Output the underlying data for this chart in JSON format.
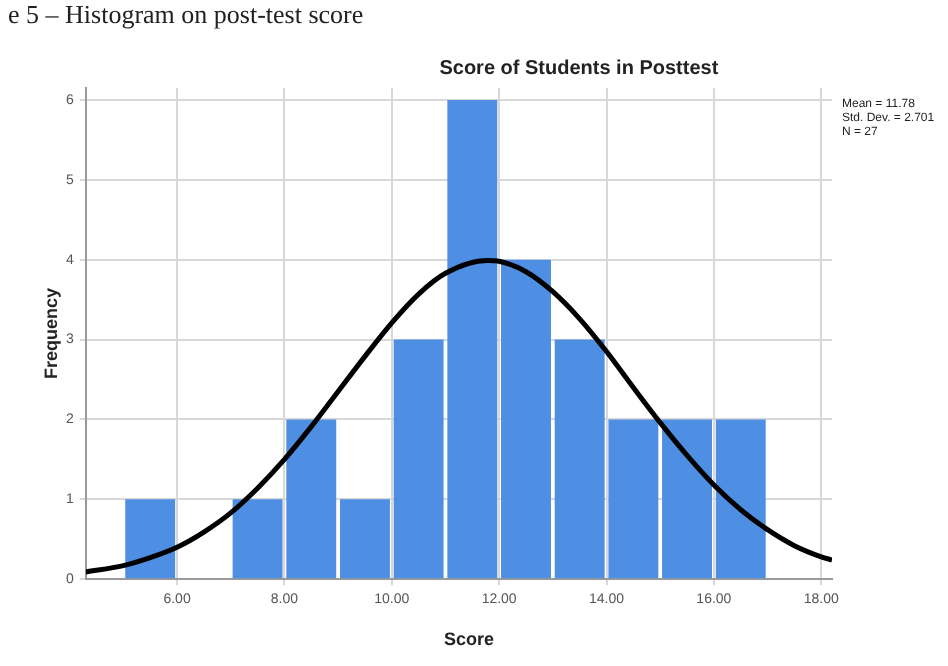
{
  "chart_data": {
    "type": "histogram",
    "title": "Score of Students in Posttest",
    "xlabel": "Score",
    "ylabel": "Frequency",
    "bins": [
      5,
      6,
      7,
      8,
      9,
      10,
      11,
      12,
      13,
      14,
      15,
      16,
      17
    ],
    "values": [
      1,
      0,
      1,
      2,
      1,
      3,
      6,
      4,
      3,
      2,
      2,
      2
    ],
    "color": "#4f8fe3",
    "series": [
      {
        "type": "line",
        "color": "#000000",
        "x": [
          4.3,
          5,
          5.5,
          6,
          6.5,
          7,
          7.5,
          8,
          8.5,
          9,
          9.5,
          10,
          10.5,
          11,
          11.78,
          12,
          12.5,
          13,
          13.5,
          14,
          14.5,
          15,
          15.5,
          16,
          16.5,
          17,
          17.5,
          18,
          18.2
        ],
        "values": [
          0.09,
          0.17,
          0.27,
          0.4,
          0.59,
          0.83,
          1.14,
          1.5,
          1.91,
          2.35,
          2.79,
          3.21,
          3.57,
          3.83,
          3.99,
          3.98,
          3.85,
          3.6,
          3.26,
          2.85,
          2.4,
          1.96,
          1.55,
          1.18,
          0.87,
          0.62,
          0.42,
          0.28,
          0.24
        ]
      }
    ],
    "xlim": [
      4.3,
      18.2
    ],
    "xticks": [
      {
        "value": 6,
        "label": "6.00"
      },
      {
        "value": 8,
        "label": "8.00"
      },
      {
        "value": 10,
        "label": "10.00"
      },
      {
        "value": 12,
        "label": "12.00"
      },
      {
        "value": 14,
        "label": "14.00"
      },
      {
        "value": 16,
        "label": "16.00"
      },
      {
        "value": 18,
        "label": "18.00"
      }
    ],
    "ylim": [
      0,
      6.15
    ],
    "yticks": [
      0,
      1,
      2,
      3,
      4,
      5,
      6
    ],
    "grid": true,
    "annotations": [
      "e 5 – Histogram on post-test score",
      "Mean = 11.78",
      "Std. Dev. = 2.701",
      "N = 27"
    ]
  }
}
